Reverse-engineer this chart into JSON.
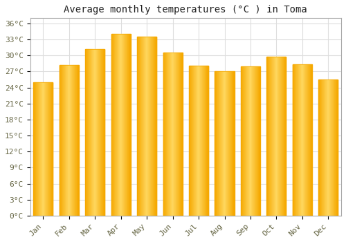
{
  "title": "Average monthly temperatures (°C ) in Toma",
  "months": [
    "Jan",
    "Feb",
    "Mar",
    "Apr",
    "May",
    "Jun",
    "Jul",
    "Aug",
    "Sep",
    "Oct",
    "Nov",
    "Dec"
  ],
  "values": [
    25.0,
    28.2,
    31.2,
    34.0,
    33.5,
    30.5,
    28.1,
    27.1,
    28.0,
    29.8,
    28.4,
    25.5
  ],
  "bar_color_center": "#FFD050",
  "bar_color_edge": "#F5A800",
  "background_color": "#FFFFFF",
  "grid_color": "#DDDDDD",
  "ylim": [
    0,
    37
  ],
  "ytick_step": 3,
  "title_fontsize": 10,
  "tick_fontsize": 8,
  "tick_color": "#666644",
  "spine_color": "#AAAAAA"
}
